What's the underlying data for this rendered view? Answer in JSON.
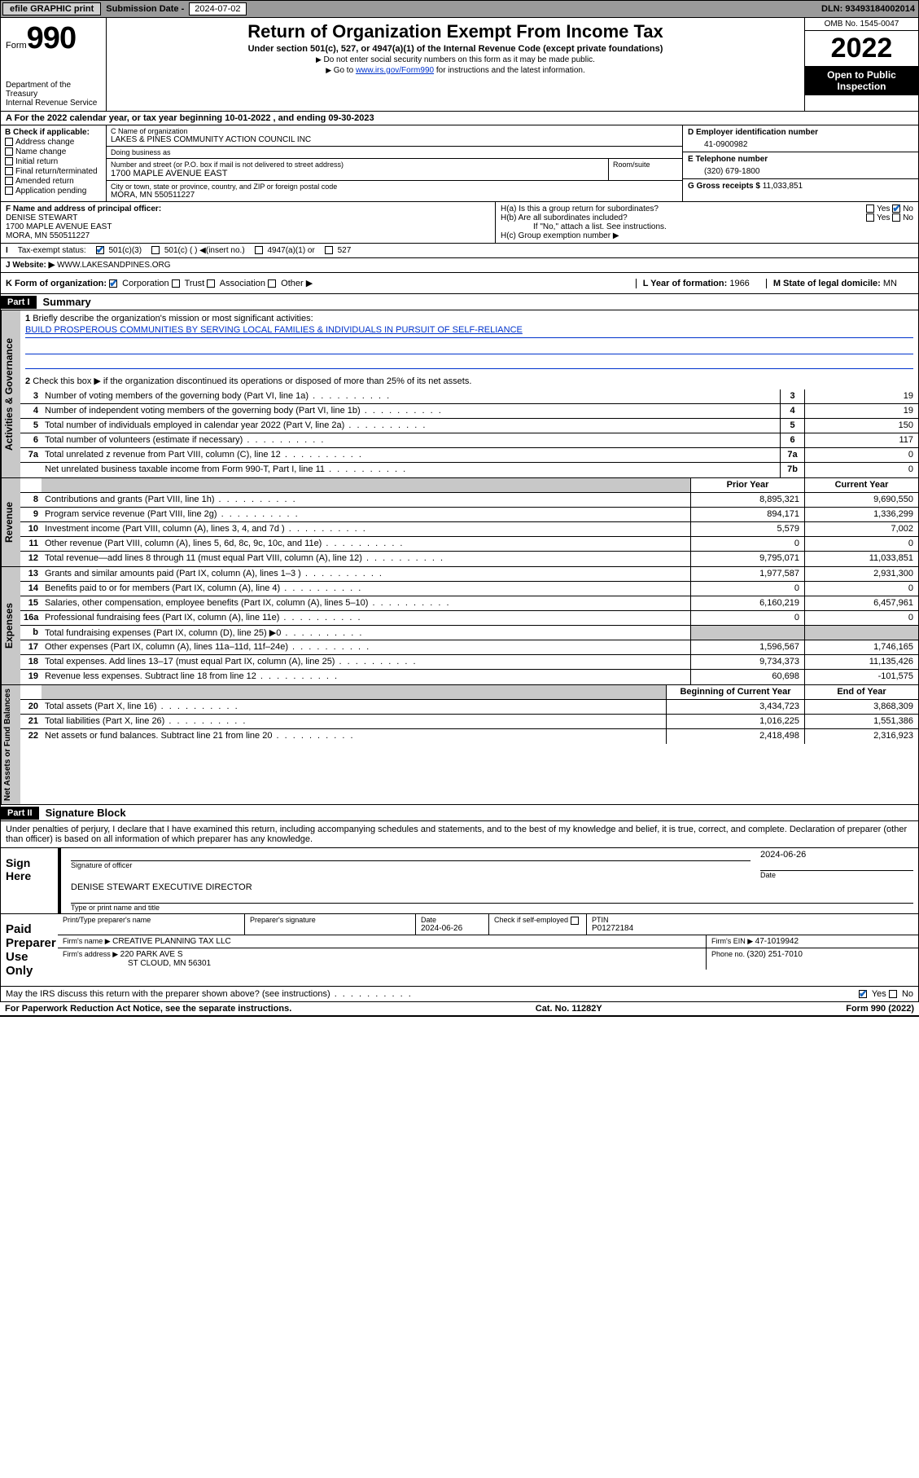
{
  "topbar": {
    "efile": "efile GRAPHIC print",
    "sub_label": "Submission Date - ",
    "sub_date": "2024-07-02",
    "dln_label": "DLN: ",
    "dln": "93493184002014"
  },
  "header": {
    "form": "Form",
    "formnum": "990",
    "dept": "Department of the Treasury",
    "irs": "Internal Revenue Service",
    "title": "Return of Organization Exempt From Income Tax",
    "sub": "Under section 501(c), 527, or 4947(a)(1) of the Internal Revenue Code (except private foundations)",
    "note1": "Do not enter social security numbers on this form as it may be made public.",
    "note2_pre": "Go to ",
    "note2_link": "www.irs.gov/Form990",
    "note2_post": " for instructions and the latest information.",
    "omb": "OMB No. 1545-0047",
    "year": "2022",
    "inspect": "Open to Public Inspection"
  },
  "period": {
    "text": "For the 2022 calendar year, or tax year beginning 10-01-2022    , and ending 09-30-2023"
  },
  "boxB": {
    "label": "B Check if applicable:",
    "items": [
      "Address change",
      "Name change",
      "Initial return",
      "Final return/terminated",
      "Amended return",
      "Application pending"
    ]
  },
  "boxC": {
    "name_lbl": "C Name of organization",
    "name": "LAKES & PINES COMMUNITY ACTION COUNCIL INC",
    "dba_lbl": "Doing business as",
    "dba": "",
    "addr_lbl": "Number and street (or P.O. box if mail is not delivered to street address)",
    "room_lbl": "Room/suite",
    "addr": "1700 MAPLE AVENUE EAST",
    "city_lbl": "City or town, state or province, country, and ZIP or foreign postal code",
    "city": "MORA, MN  550511227"
  },
  "boxD": {
    "lbl": "D Employer identification number",
    "val": "41-0900982"
  },
  "boxE": {
    "lbl": "E Telephone number",
    "val": "(320) 679-1800"
  },
  "boxG": {
    "lbl": "G Gross receipts $ ",
    "val": "11,033,851"
  },
  "boxF": {
    "lbl": "F  Name and address of principal officer:",
    "name": "DENISE STEWART",
    "addr": "1700 MAPLE AVENUE EAST",
    "city": "MORA, MN  550511227"
  },
  "boxH": {
    "a": "H(a)  Is this a group return for subordinates?",
    "b": "H(b)  Are all subordinates included?",
    "note": "If \"No,\" attach a list. See instructions.",
    "c": "H(c)  Group exemption number ▶",
    "yes": "Yes",
    "no": "No"
  },
  "boxI": {
    "lbl": "Tax-exempt status:",
    "opts": [
      "501(c)(3)",
      "501(c) (  ) ◀(insert no.)",
      "4947(a)(1) or",
      "527"
    ]
  },
  "boxJ": {
    "lbl": "Website: ▶ ",
    "val": "WWW.LAKESANDPINES.ORG"
  },
  "boxK": {
    "lbl": "K Form of organization:",
    "opts": [
      "Corporation",
      "Trust",
      "Association",
      "Other ▶"
    ]
  },
  "boxL": {
    "lbl": "L Year of formation: ",
    "val": "1966"
  },
  "boxM": {
    "lbl": "M State of legal domicile: ",
    "val": "MN"
  },
  "part1": {
    "lbl": "Part I",
    "title": "Summary"
  },
  "summary": {
    "line1_lbl": "Briefly describe the organization's mission or most significant activities:",
    "line1_val": "BUILD PROSPEROUS COMMUNITIES BY SERVING LOCAL FAMILIES & INDIVIDUALS IN PURSUIT OF SELF-RELIANCE",
    "line2": "Check this box ▶        if the organization discontinued its operations or disposed of more than 25% of its net assets.",
    "rows_a": [
      {
        "n": "3",
        "d": "Number of voting members of the governing body (Part VI, line 1a)",
        "box": "3",
        "v": "19"
      },
      {
        "n": "4",
        "d": "Number of independent voting members of the governing body (Part VI, line 1b)",
        "box": "4",
        "v": "19"
      },
      {
        "n": "5",
        "d": "Total number of individuals employed in calendar year 2022 (Part V, line 2a)",
        "box": "5",
        "v": "150"
      },
      {
        "n": "6",
        "d": "Total number of volunteers (estimate if necessary)",
        "box": "6",
        "v": "117"
      },
      {
        "n": "7a",
        "d": "Total unrelated z revenue from Part VIII, column (C), line 12",
        "box": "7a",
        "v": "0"
      },
      {
        "n": "",
        "d": "Net unrelated business taxable income from Form 990-T, Part I, line 11",
        "box": "7b",
        "v": "0"
      }
    ],
    "col_hdr_prior": "Prior Year",
    "col_hdr_curr": "Current Year",
    "rows_rev": [
      {
        "n": "8",
        "d": "Contributions and grants (Part VIII, line 1h)",
        "p": "8,895,321",
        "c": "9,690,550"
      },
      {
        "n": "9",
        "d": "Program service revenue (Part VIII, line 2g)",
        "p": "894,171",
        "c": "1,336,299"
      },
      {
        "n": "10",
        "d": "Investment income (Part VIII, column (A), lines 3, 4, and 7d )",
        "p": "5,579",
        "c": "7,002"
      },
      {
        "n": "11",
        "d": "Other revenue (Part VIII, column (A), lines 5, 6d, 8c, 9c, 10c, and 11e)",
        "p": "0",
        "c": "0"
      },
      {
        "n": "12",
        "d": "Total revenue—add lines 8 through 11 (must equal Part VIII, column (A), line 12)",
        "p": "9,795,071",
        "c": "11,033,851"
      }
    ],
    "rows_exp": [
      {
        "n": "13",
        "d": "Grants and similar amounts paid (Part IX, column (A), lines 1–3 )",
        "p": "1,977,587",
        "c": "2,931,300"
      },
      {
        "n": "14",
        "d": "Benefits paid to or for members (Part IX, column (A), line 4)",
        "p": "0",
        "c": "0"
      },
      {
        "n": "15",
        "d": "Salaries, other compensation, employee benefits (Part IX, column (A), lines 5–10)",
        "p": "6,160,219",
        "c": "6,457,961"
      },
      {
        "n": "16a",
        "d": "Professional fundraising fees (Part IX, column (A), line 11e)",
        "p": "0",
        "c": "0"
      },
      {
        "n": "b",
        "d": "Total fundraising expenses (Part IX, column (D), line 25) ▶0",
        "p": "",
        "c": "",
        "shade": true
      },
      {
        "n": "17",
        "d": "Other expenses (Part IX, column (A), lines 11a–11d, 11f–24e)",
        "p": "1,596,567",
        "c": "1,746,165"
      },
      {
        "n": "18",
        "d": "Total expenses. Add lines 13–17 (must equal Part IX, column (A), line 25)",
        "p": "9,734,373",
        "c": "11,135,426"
      },
      {
        "n": "19",
        "d": "Revenue less expenses. Subtract line 18 from line 12",
        "p": "60,698",
        "c": "-101,575"
      }
    ],
    "col_hdr_beg": "Beginning of Current Year",
    "col_hdr_end": "End of Year",
    "rows_net": [
      {
        "n": "20",
        "d": "Total assets (Part X, line 16)",
        "p": "3,434,723",
        "c": "3,868,309"
      },
      {
        "n": "21",
        "d": "Total liabilities (Part X, line 26)",
        "p": "1,016,225",
        "c": "1,551,386"
      },
      {
        "n": "22",
        "d": "Net assets or fund balances. Subtract line 21 from line 20",
        "p": "2,418,498",
        "c": "2,316,923"
      }
    ]
  },
  "side_labels": {
    "gov": "Activities & Governance",
    "rev": "Revenue",
    "exp": "Expenses",
    "net": "Net Assets or Fund Balances"
  },
  "part2": {
    "lbl": "Part II",
    "title": "Signature Block"
  },
  "sig": {
    "decl": "Under penalties of perjury, I declare that I have examined this return, including accompanying schedules and statements, and to the best of my knowledge and belief, it is true, correct, and complete. Declaration of preparer (other than officer) is based on all information of which preparer has any knowledge.",
    "sign_here": "Sign Here",
    "sig_officer": "Signature of officer",
    "date": "Date",
    "date_val": "2024-06-26",
    "officer_name": "DENISE STEWART  EXECUTIVE DIRECTOR",
    "type_name": "Type or print name and title",
    "paid": "Paid Preparer Use Only",
    "prep_name": "Print/Type preparer's name",
    "prep_sig": "Preparer's signature",
    "prep_date": "2024-06-26",
    "check_if": "Check        if self-employed",
    "ptin_lbl": "PTIN",
    "ptin": "P01272184",
    "firm_name_lbl": "Firm's name    ▶ ",
    "firm_name": "CREATIVE PLANNING TAX LLC",
    "firm_ein_lbl": "Firm's EIN ▶ ",
    "firm_ein": "47-1019942",
    "firm_addr_lbl": "Firm's address ▶ ",
    "firm_addr": "220 PARK AVE S",
    "firm_city": "ST CLOUD, MN  56301",
    "phone_lbl": "Phone no. ",
    "phone": "(320) 251-7010",
    "may_irs": "May the IRS discuss this return with the preparer shown above? (see instructions)",
    "yes": "Yes",
    "no": "No"
  },
  "footer": {
    "left": "For Paperwork Reduction Act Notice, see the separate instructions.",
    "mid": "Cat. No. 11282Y",
    "right": "Form 990 (2022)"
  }
}
